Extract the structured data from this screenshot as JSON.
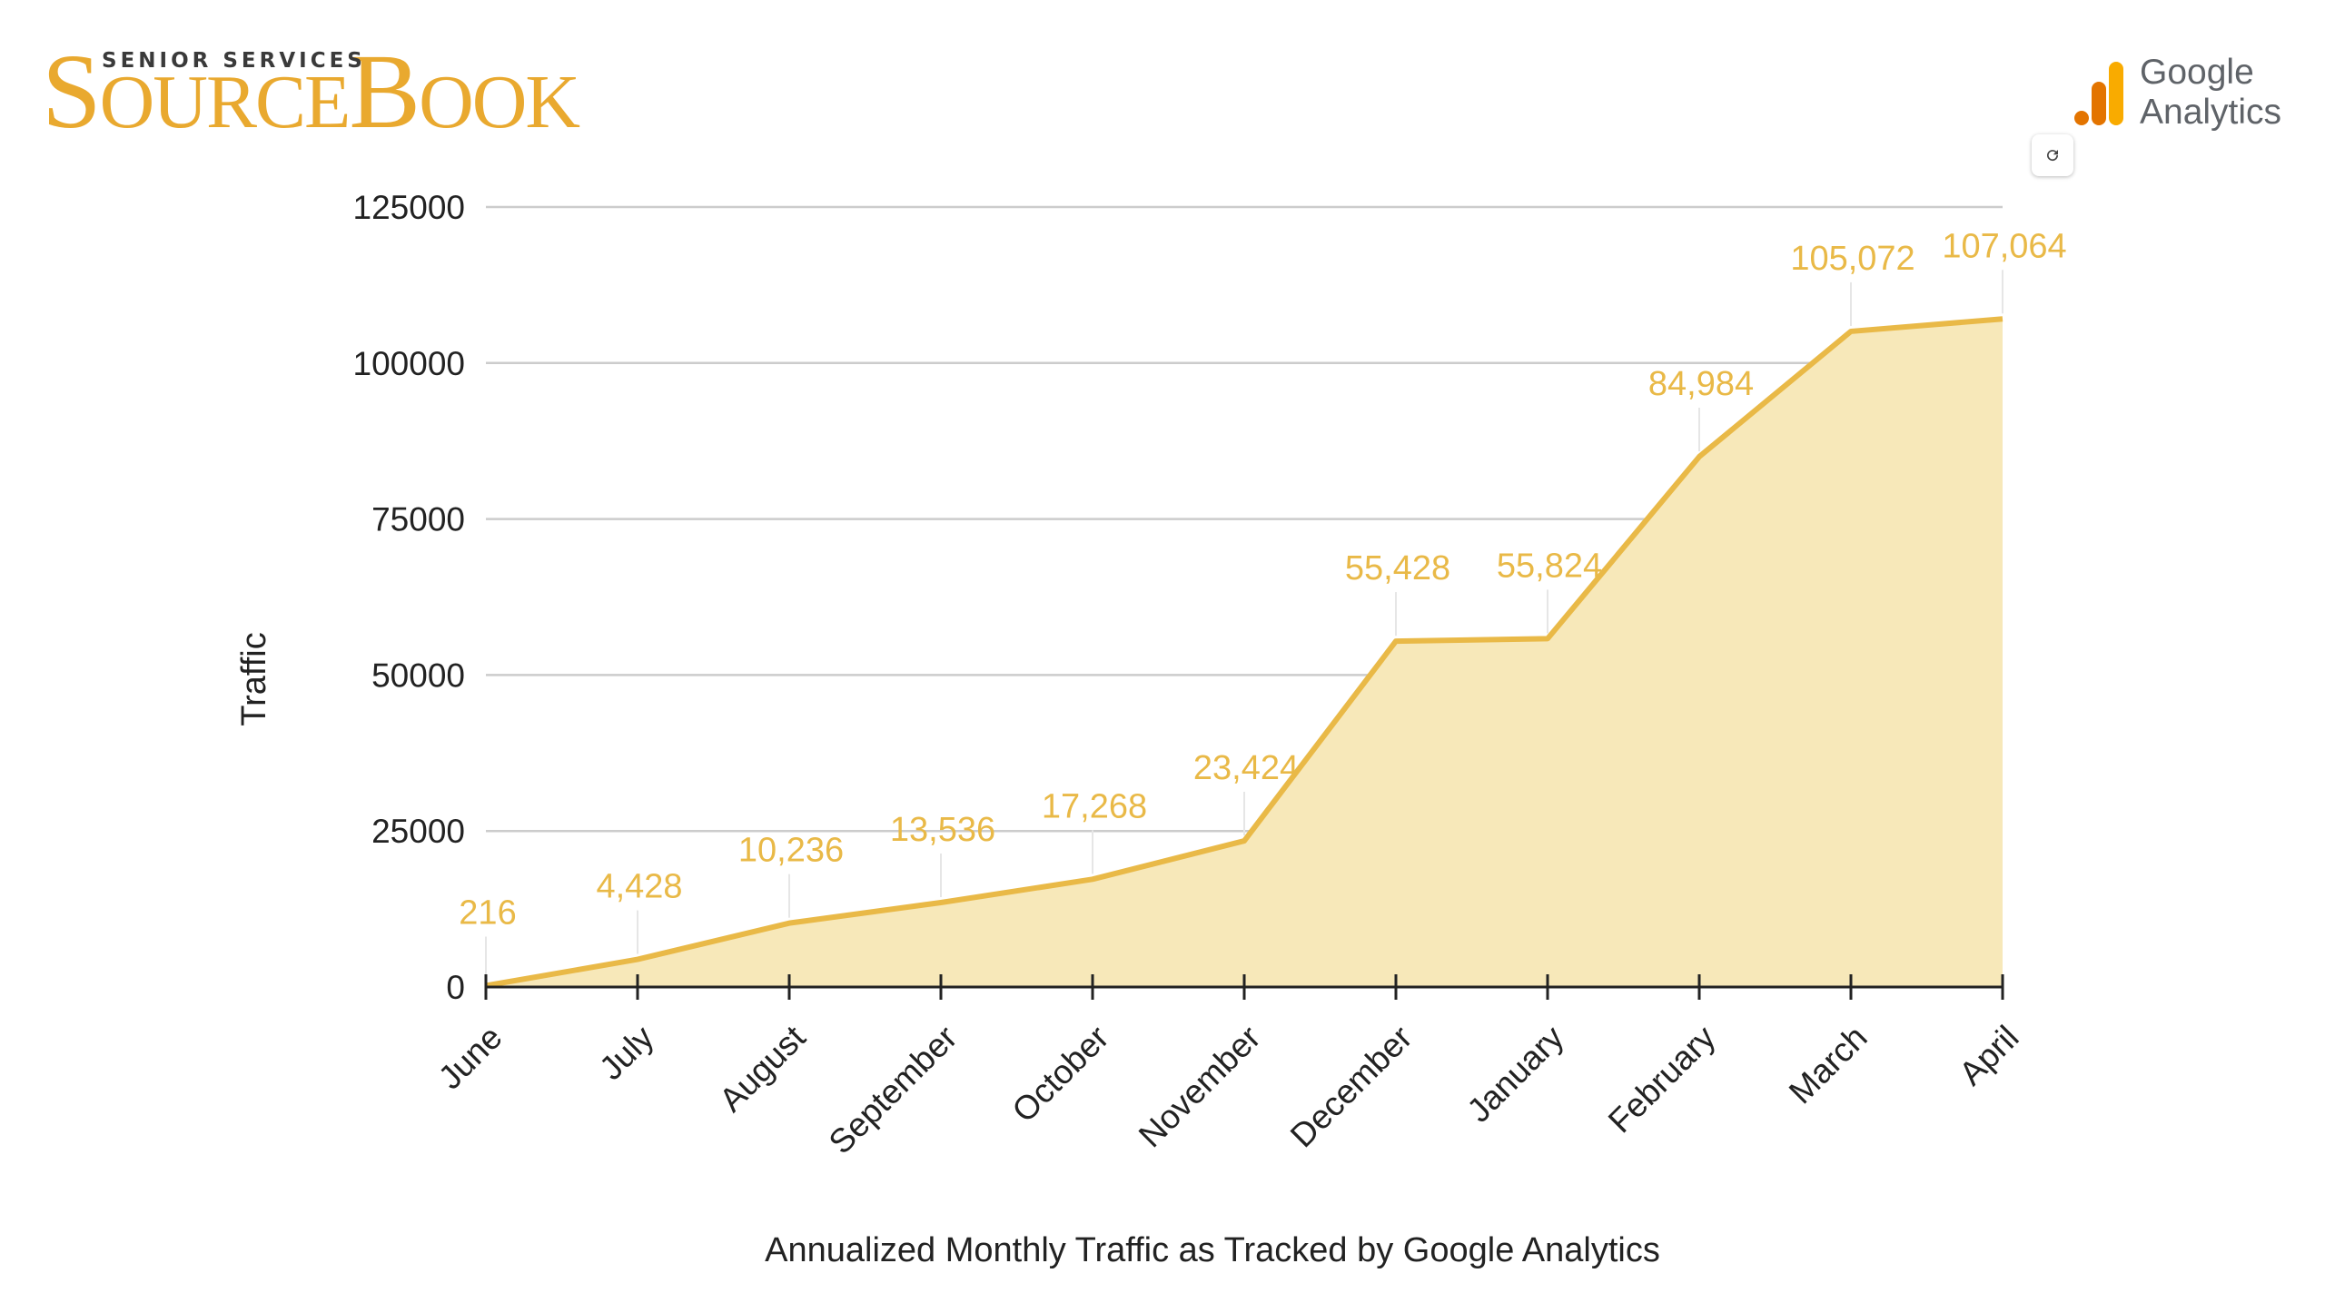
{
  "brand": {
    "tagline": "SENIOR SERVICES",
    "name_part1_big": "S",
    "name_part1_small": "OURCE",
    "name_part2_big": "B",
    "name_part2_small": "OOK"
  },
  "analytics_logo": {
    "line1": "Google",
    "line2": "Analytics",
    "icon": "google-analytics-bars-icon"
  },
  "refresh_button": {
    "icon": "refresh-icon"
  },
  "colors": {
    "accent": "#e9b947",
    "fill": "#f7e8b9",
    "label": "#e9b947",
    "grid": "#cccccc",
    "brand": "#e9a92f"
  },
  "chart_data": {
    "type": "area",
    "title": "Annualized Monthly Traffic as Tracked by Google Analytics",
    "xlabel": "",
    "ylabel": "Traffic",
    "ylim": [
      0,
      125000
    ],
    "yticks": [
      "125000",
      "100000",
      "75000",
      "50000",
      "25000",
      "0"
    ],
    "ytick_values": [
      125000,
      100000,
      75000,
      50000,
      25000,
      0
    ],
    "grid": true,
    "categories": [
      "June",
      "July",
      "August",
      "September",
      "October",
      "November",
      "December",
      "January",
      "February",
      "March",
      "April"
    ],
    "values": [
      216,
      4428,
      10236,
      13536,
      17268,
      23424,
      55428,
      55824,
      84984,
      105072,
      107064
    ],
    "data_labels": [
      "216",
      "4,428",
      "10,236",
      "13,536",
      "17,268",
      "23,424",
      "55,428",
      "55,824",
      "84,984",
      "105,072",
      "107,064"
    ]
  }
}
